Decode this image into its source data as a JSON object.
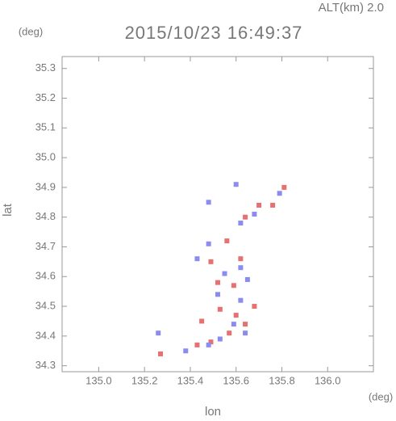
{
  "chart_data": {
    "type": "scatter",
    "title": "2015/10/23 16:49:37",
    "subtitle": "ALT(km) 2.0",
    "x_label": "lon",
    "y_label": "lat",
    "x_unit": "(deg)",
    "y_unit": "(deg)",
    "xlim": [
      134.84,
      136.2
    ],
    "ylim": [
      34.28,
      35.34
    ],
    "xticks": [
      {
        "value": 135,
        "label": "135.0"
      },
      135.2,
      135.4,
      135.6,
      135.8,
      {
        "value": 136,
        "label": "136.0"
      }
    ],
    "yticks": [
      34.3,
      34.4,
      34.5,
      34.6,
      34.7,
      34.8,
      34.9,
      {
        "value": 35,
        "label": "35.0"
      },
      35.1,
      35.2,
      35.3
    ],
    "series": [
      {
        "color": "#e87070",
        "x": [
          135.81,
          135.7,
          135.64,
          135.56,
          135.49,
          135.59,
          135.53,
          135.6,
          135.45,
          135.49,
          135.43,
          135.27,
          135.64,
          135.62,
          135.52,
          135.68,
          135.57,
          135.76
        ],
        "y": [
          34.9,
          34.84,
          34.8,
          34.72,
          34.65,
          34.57,
          34.49,
          34.47,
          34.45,
          34.38,
          34.37,
          34.34,
          34.44,
          34.66,
          34.58,
          34.5,
          34.41,
          34.84
        ]
      },
      {
        "color": "#8c8cf0",
        "x": [
          135.79,
          135.62,
          135.68,
          135.48,
          135.62,
          135.55,
          135.43,
          135.65,
          135.52,
          135.62,
          135.64,
          135.59,
          135.53,
          135.48,
          135.38,
          135.26,
          135.48,
          135.6
        ],
        "y": [
          34.88,
          34.78,
          34.81,
          34.71,
          34.63,
          34.61,
          34.66,
          34.59,
          34.54,
          34.52,
          34.41,
          34.44,
          34.39,
          34.37,
          34.35,
          34.41,
          34.85,
          34.91
        ]
      }
    ]
  }
}
